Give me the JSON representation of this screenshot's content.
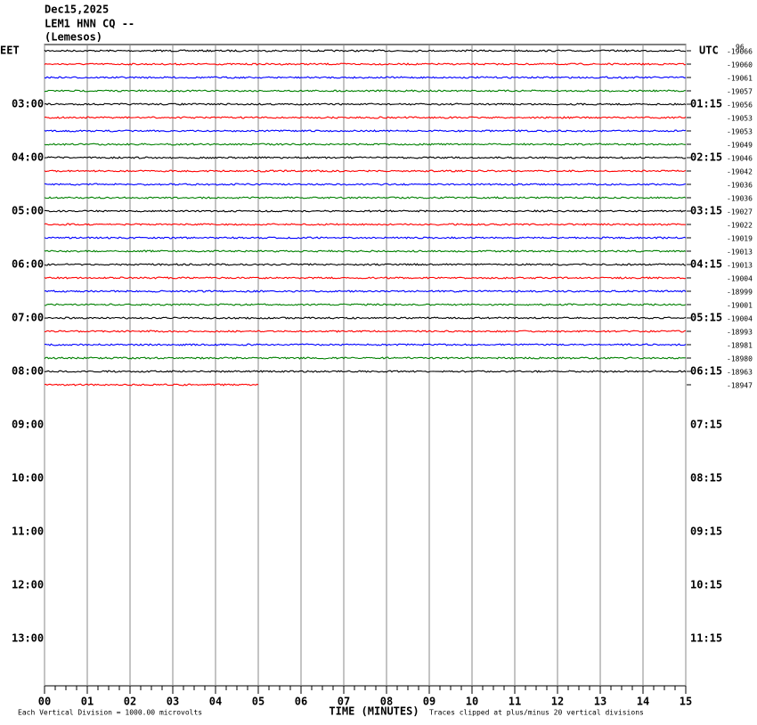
{
  "chart_data": {
    "type": "helicorder",
    "title_lines": [
      "Dec15,2025",
      "LEM1 HNN CQ --",
      "(Lemesos)"
    ],
    "left_axis_label": "EET",
    "right_axis_label": "UTC",
    "corner_label": "96",
    "left_hour_labels": [
      "03:00",
      "04:00",
      "05:00",
      "06:00",
      "07:00",
      "08:00",
      "09:00",
      "10:00",
      "11:00",
      "12:00",
      "13:00"
    ],
    "right_hour_labels": [
      "01:15",
      "02:15",
      "03:15",
      "04:15",
      "05:15",
      "06:15",
      "07:15",
      "08:15",
      "09:15",
      "10:15",
      "11:15"
    ],
    "xlabel": "TIME (MINUTES)",
    "xlim": [
      0,
      15
    ],
    "xticks": [
      {
        "value": 0,
        "label": "00"
      },
      {
        "value": 1,
        "label": "01"
      },
      {
        "value": 2,
        "label": "02"
      },
      {
        "value": 3,
        "label": "03"
      },
      {
        "value": 4,
        "label": "04"
      },
      {
        "value": 5,
        "label": "05"
      },
      {
        "value": 6,
        "label": "06"
      },
      {
        "value": 7,
        "label": "07"
      },
      {
        "value": 8,
        "label": "08"
      },
      {
        "value": 9,
        "label": "09"
      },
      {
        "value": 10,
        "label": "10"
      },
      {
        "value": 11,
        "label": "11"
      },
      {
        "value": 12,
        "label": "12"
      },
      {
        "value": 13,
        "label": "13"
      },
      {
        "value": 14,
        "label": "14"
      },
      {
        "value": 15,
        "label": "15"
      }
    ],
    "footer_left": "Each Vertical Division = 1000.00 microvolts",
    "footer_right": "Traces clipped at plus/minus 20 vertical divisions",
    "trace_colors": [
      "#000000",
      "#ff0000",
      "#0000ff",
      "#008000"
    ],
    "trace_offsets": [
      -19066,
      -19060,
      -19061,
      -19057,
      -19056,
      -19053,
      -19053,
      -19049,
      -19046,
      -19042,
      -19036,
      -19036,
      -19027,
      -19022,
      -19019,
      -19013,
      -19013,
      -19004,
      -18999,
      -19001,
      -19004,
      -18993,
      -18981,
      -18980,
      -18963,
      -18947
    ],
    "trace_end_minutes": [
      15,
      15,
      15,
      15,
      15,
      15,
      15,
      15,
      15,
      15,
      15,
      15,
      15,
      15,
      15,
      15,
      15,
      15,
      15,
      15,
      15,
      15,
      15,
      15,
      15,
      5
    ]
  }
}
